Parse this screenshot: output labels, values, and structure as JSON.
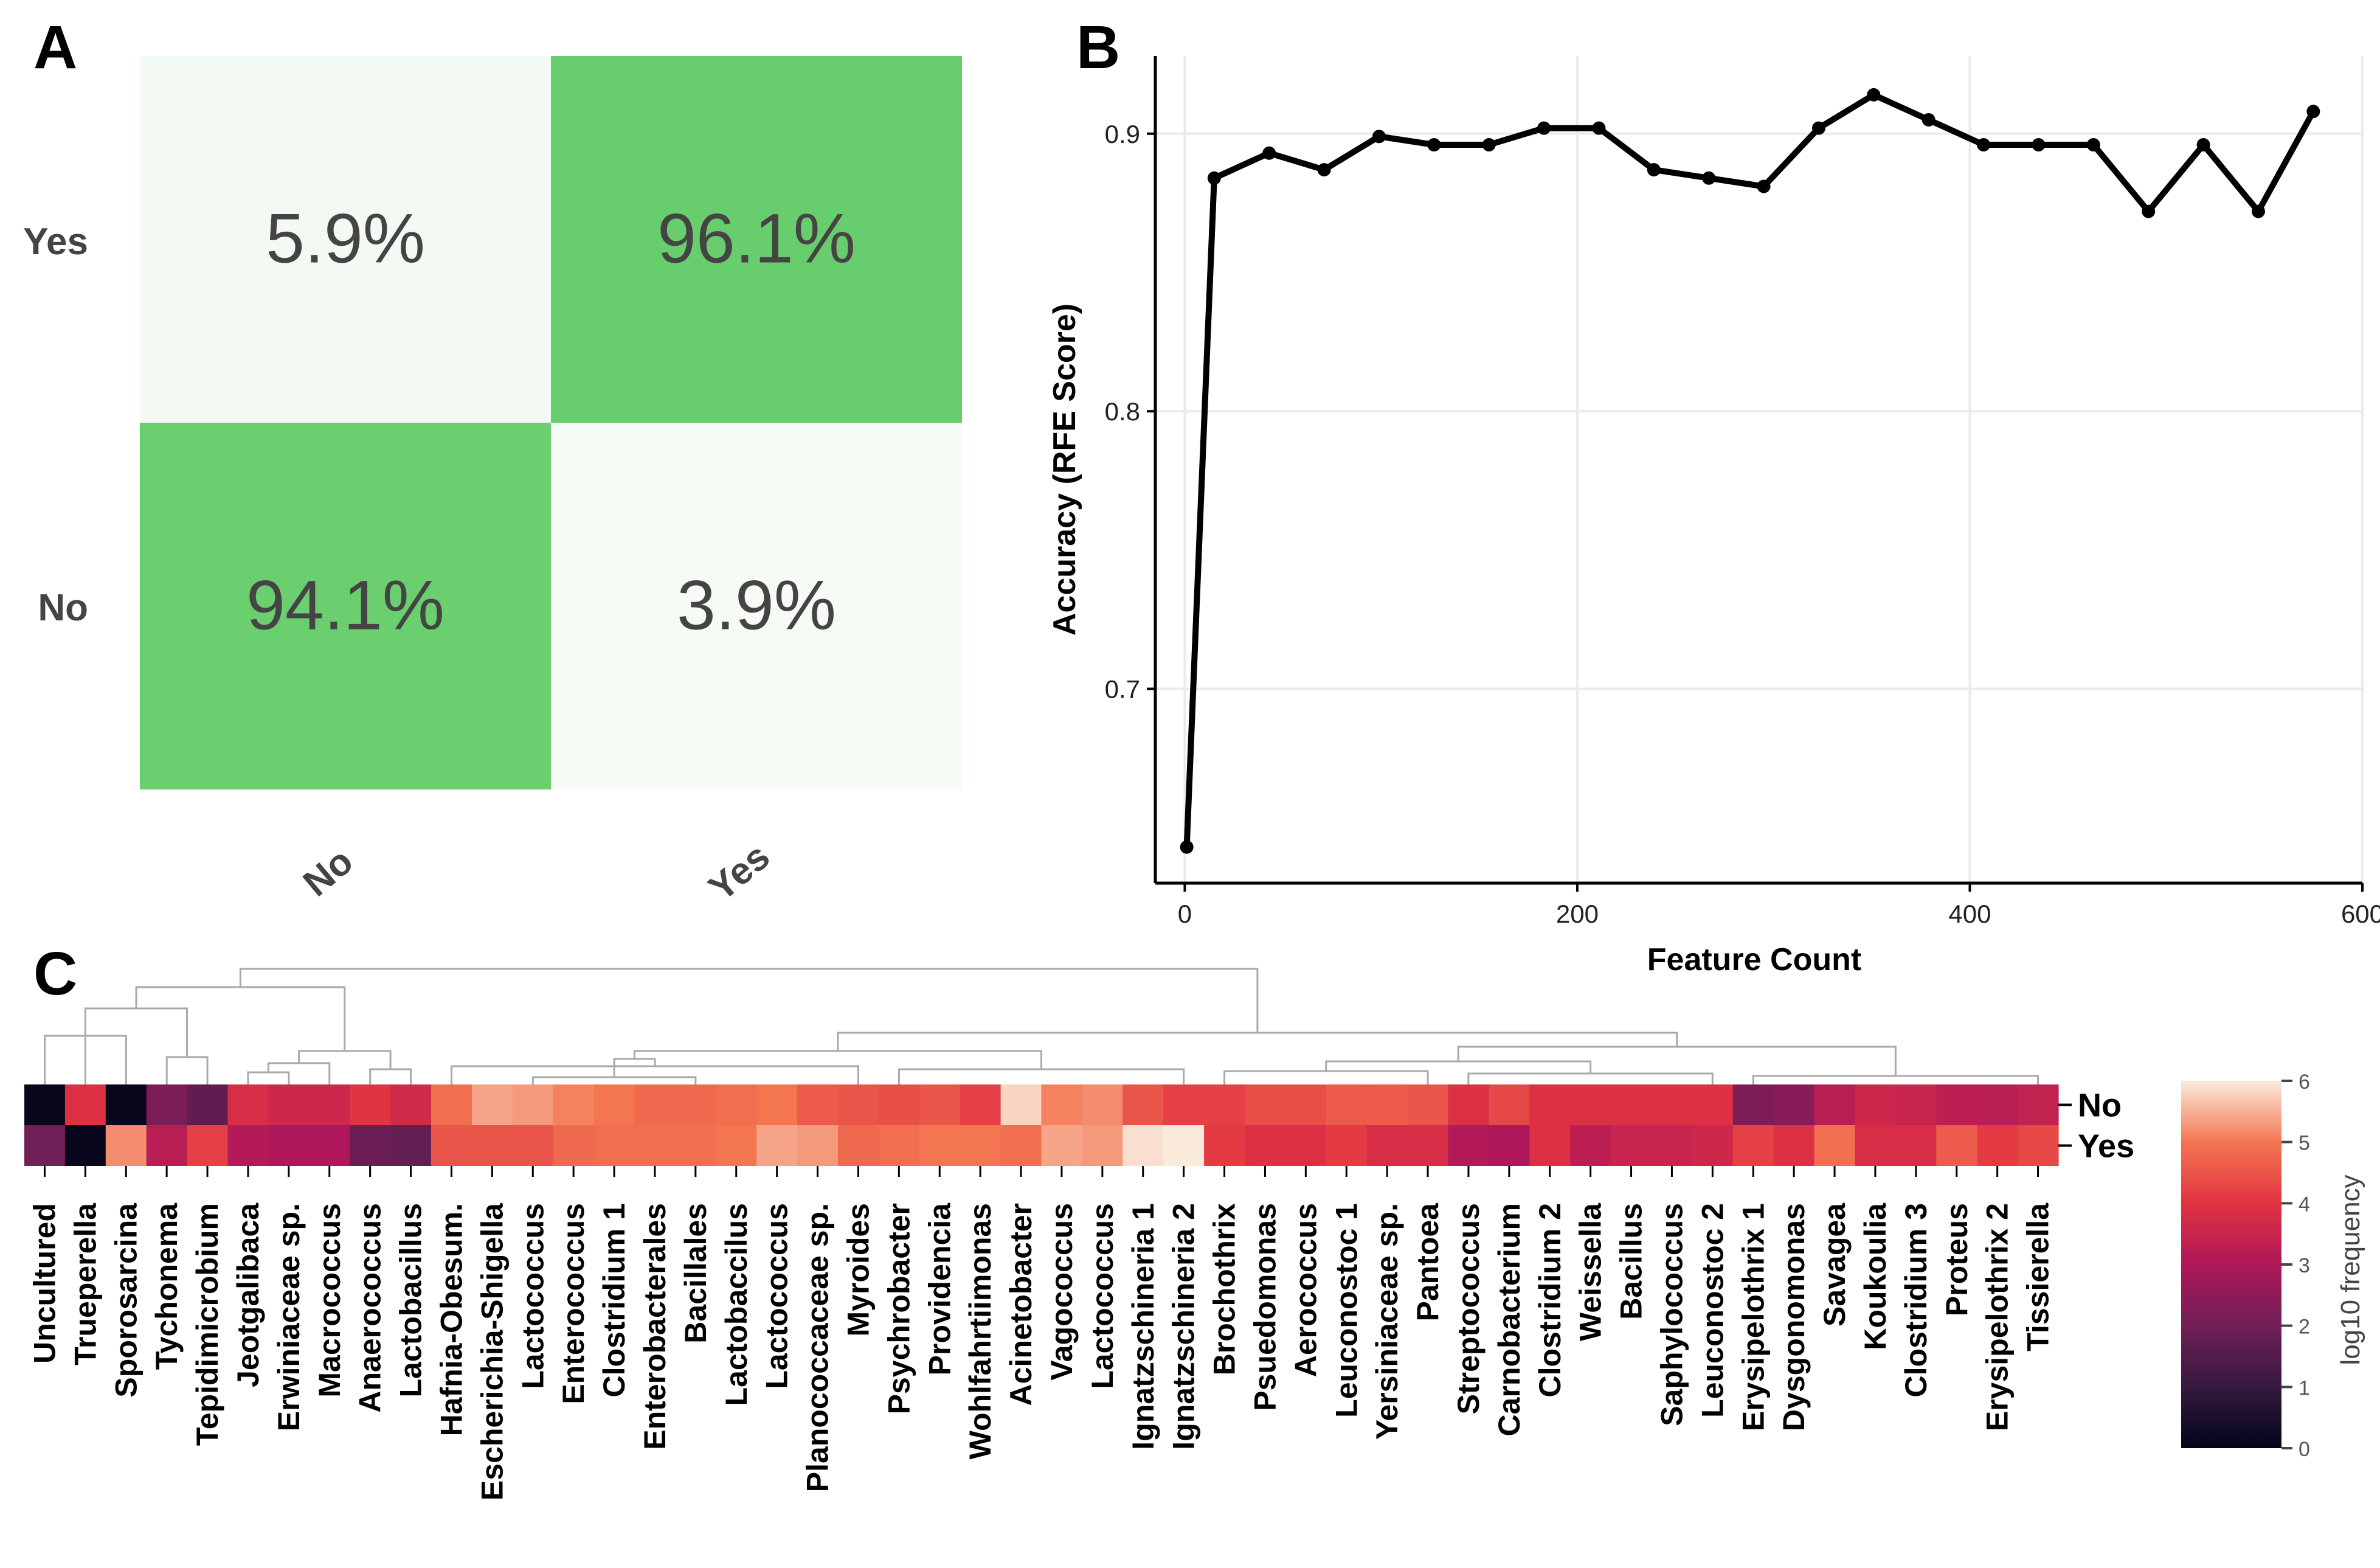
{
  "panels": {
    "a": "A",
    "b": "B",
    "c": "C"
  },
  "chart_data": [
    {
      "type": "heatmap",
      "panel": "A",
      "title": "",
      "x_categories": [
        "No",
        "Yes"
      ],
      "y_categories": [
        "Yes",
        "No"
      ],
      "cells": [
        {
          "row": "Yes",
          "col": "No",
          "value": 5.9,
          "label": "5.9%"
        },
        {
          "row": "Yes",
          "col": "Yes",
          "value": 96.1,
          "label": "96.1%"
        },
        {
          "row": "No",
          "col": "No",
          "value": 94.1,
          "label": "94.1%"
        },
        {
          "row": "No",
          "col": "Yes",
          "value": 3.9,
          "label": "3.9%"
        }
      ],
      "colors": {
        "low": "#f6fbf6",
        "high": "#68cd6c",
        "text": "#444444"
      }
    },
    {
      "type": "line",
      "panel": "B",
      "xlabel": "Feature Count",
      "ylabel": "Accuracy (RFE Score)",
      "xlim": [
        -15,
        600
      ],
      "ylim": [
        0.63,
        0.928
      ],
      "xticks": [
        0,
        200,
        400,
        600
      ],
      "xtick_labels": [
        "0",
        "200",
        "400",
        "600"
      ],
      "yticks": [
        0.7,
        0.8,
        0.9
      ],
      "ytick_labels": [
        "0.7",
        "0.8",
        "0.9"
      ],
      "grid": true,
      "x": [
        1,
        15,
        43,
        71,
        99,
        127,
        155,
        183,
        211,
        239,
        267,
        295,
        323,
        351,
        379,
        407,
        435,
        463,
        491,
        519,
        547,
        575
      ],
      "y": [
        0.643,
        0.884,
        0.893,
        0.887,
        0.899,
        0.896,
        0.896,
        0.902,
        0.902,
        0.887,
        0.884,
        0.881,
        0.902,
        0.914,
        0.905,
        0.896,
        0.896,
        0.896,
        0.872,
        0.896,
        0.872,
        0.908
      ],
      "color": "#000000"
    },
    {
      "type": "heatmap",
      "panel": "C",
      "rows": [
        "No",
        "Yes"
      ],
      "columns": [
        "Uncultured",
        "Trueperella",
        "Sporosarcina",
        "Tychonema",
        "Tepidimicrobium",
        "Jeotgalibaca",
        "Erwiniaceae sp.",
        "Macrococcus",
        "Anaerococcus",
        "Lactobacillus",
        "Hafnia-Obesum.",
        "Escherichia-Shigella",
        "Lactococcus",
        "Enterococcus",
        "Clostridium 1",
        "Enterobacterales",
        "Bacillales",
        "Lactobaccilus",
        "Lactococcus",
        "Planococcaceae sp.",
        "Myroides",
        "Psychrobacter",
        "Providencia",
        "Wohlfahrtiimonas",
        "Acinetobacter",
        "Vagococcus",
        "Lactococcus",
        "Ignatzschineria 1",
        "Ignatzschineria 2",
        "Brochothrix",
        "Psuedomonas",
        "Aerococcus",
        "Leuconostoc 1",
        "Yersiniaceae sp.",
        "Pantoea",
        "Streptococcus",
        "Carnobacterium",
        "Clostridium 2",
        "Weissella",
        "Bacillus",
        "Saphylococcus",
        "Leuconostoc 2",
        "Erysipelothrix 1",
        "Dysgonomonas",
        "Savagea",
        "Koukoulia",
        "Clostridium 3",
        "Proteus",
        "Erysipelothrix 2",
        "Tissierella"
      ],
      "values_no": [
        0.1,
        3.9,
        0.1,
        2.2,
        1.7,
        3.8,
        3.6,
        3.6,
        4.0,
        3.7,
        4.9,
        5.4,
        5.3,
        5.1,
        5.0,
        4.8,
        4.8,
        4.9,
        5.0,
        4.6,
        4.5,
        4.4,
        4.5,
        4.2,
        5.8,
        5.1,
        5.2,
        4.5,
        4.2,
        4.2,
        4.4,
        4.4,
        4.6,
        4.6,
        4.5,
        3.9,
        4.3,
        3.9,
        3.9,
        3.9,
        3.9,
        3.9,
        2.2,
        2.4,
        3.2,
        3.6,
        3.5,
        3.3,
        3.2,
        3.4
      ],
      "values_yes": [
        2.0,
        0.1,
        5.2,
        3.2,
        4.2,
        3.1,
        3.0,
        3.0,
        1.9,
        1.8,
        4.5,
        4.5,
        4.5,
        4.8,
        4.9,
        4.9,
        4.9,
        5.0,
        5.4,
        5.3,
        4.8,
        4.9,
        5.0,
        5.0,
        4.9,
        5.4,
        5.3,
        5.9,
        6.0,
        4.1,
        3.9,
        3.9,
        4.1,
        3.8,
        3.8,
        3.1,
        3.0,
        3.9,
        3.3,
        3.5,
        3.5,
        3.6,
        4.2,
        3.9,
        4.9,
        3.8,
        3.8,
        4.6,
        4.1,
        4.3
      ],
      "dendrogram": true,
      "legend_title": "log10 frequency",
      "legend_ticks": [
        0,
        1,
        2,
        3,
        4,
        5,
        6
      ],
      "legend_tick_labels": [
        "0",
        "1",
        "2",
        "3",
        "4",
        "5",
        "6"
      ],
      "range": [
        0,
        6
      ]
    }
  ]
}
